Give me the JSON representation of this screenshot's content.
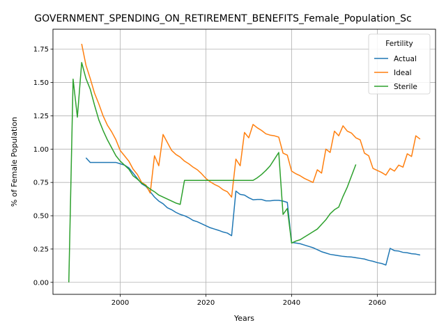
{
  "chart_data": {
    "type": "line",
    "title": "GOVERNMENT_SPENDING_ON_RETIREMENT_BENEFITS_Female_Population_Sc",
    "xlabel": "Years",
    "ylabel": "% of Female Population",
    "xlim": [
      1984.3,
      2073.6
    ],
    "ylim": [
      -0.09,
      1.9
    ],
    "xticks": [
      2000,
      2020,
      2040,
      2060
    ],
    "yticks": [
      0.0,
      0.25,
      0.5,
      0.75,
      1.0,
      1.25,
      1.5,
      1.75
    ],
    "grid": true,
    "legend": {
      "title": "Fertility",
      "position": "top-right"
    },
    "series": [
      {
        "name": "Actual",
        "color": "#1f77b4",
        "points": [
          [
            1992,
            0.935
          ],
          [
            1993,
            0.9
          ],
          [
            1994,
            0.9
          ],
          [
            1995,
            0.9
          ],
          [
            1996,
            0.9
          ],
          [
            1997,
            0.9
          ],
          [
            1998,
            0.9
          ],
          [
            1999,
            0.9
          ],
          [
            2000,
            0.89
          ],
          [
            2001,
            0.88
          ],
          [
            2002,
            0.86
          ],
          [
            2003,
            0.82
          ],
          [
            2004,
            0.78
          ],
          [
            2005,
            0.74
          ],
          [
            2006,
            0.72
          ],
          [
            2007,
            0.68
          ],
          [
            2008,
            0.64
          ],
          [
            2009,
            0.61
          ],
          [
            2010,
            0.59
          ],
          [
            2011,
            0.56
          ],
          [
            2012,
            0.545
          ],
          [
            2013,
            0.525
          ],
          [
            2014,
            0.51
          ],
          [
            2015,
            0.5
          ],
          [
            2016,
            0.485
          ],
          [
            2017,
            0.465
          ],
          [
            2018,
            0.455
          ],
          [
            2019,
            0.44
          ],
          [
            2020,
            0.425
          ],
          [
            2021,
            0.41
          ],
          [
            2022,
            0.4
          ],
          [
            2023,
            0.39
          ],
          [
            2024,
            0.378
          ],
          [
            2025,
            0.37
          ],
          [
            2026,
            0.35
          ],
          [
            2027,
            0.685
          ],
          [
            2028,
            0.66
          ],
          [
            2029,
            0.655
          ],
          [
            2030,
            0.635
          ],
          [
            2031,
            0.62
          ],
          [
            2032,
            0.622
          ],
          [
            2033,
            0.622
          ],
          [
            2034,
            0.612
          ],
          [
            2035,
            0.612
          ],
          [
            2036,
            0.616
          ],
          [
            2037,
            0.616
          ],
          [
            2038,
            0.61
          ],
          [
            2039,
            0.6
          ],
          [
            2040,
            0.3
          ],
          [
            2041,
            0.295
          ],
          [
            2042,
            0.29
          ],
          [
            2043,
            0.28
          ],
          [
            2044,
            0.27
          ],
          [
            2045,
            0.26
          ],
          [
            2046,
            0.245
          ],
          [
            2047,
            0.23
          ],
          [
            2048,
            0.22
          ],
          [
            2049,
            0.21
          ],
          [
            2050,
            0.205
          ],
          [
            2051,
            0.2
          ],
          [
            2052,
            0.195
          ],
          [
            2053,
            0.192
          ],
          [
            2054,
            0.19
          ],
          [
            2055,
            0.185
          ],
          [
            2056,
            0.18
          ],
          [
            2057,
            0.175
          ],
          [
            2058,
            0.165
          ],
          [
            2059,
            0.158
          ],
          [
            2060,
            0.148
          ],
          [
            2061,
            0.142
          ],
          [
            2062,
            0.13
          ],
          [
            2063,
            0.255
          ],
          [
            2064,
            0.238
          ],
          [
            2065,
            0.235
          ],
          [
            2066,
            0.225
          ],
          [
            2067,
            0.222
          ],
          [
            2068,
            0.215
          ],
          [
            2069,
            0.212
          ],
          [
            2070,
            0.205
          ]
        ]
      },
      {
        "name": "Ideal",
        "color": "#ff7f0e",
        "points": [
          [
            1991,
            1.79
          ],
          [
            1992,
            1.63
          ],
          [
            1993,
            1.53
          ],
          [
            1994,
            1.42
          ],
          [
            1995,
            1.34
          ],
          [
            1996,
            1.25
          ],
          [
            1997,
            1.18
          ],
          [
            1998,
            1.13
          ],
          [
            1999,
            1.07
          ],
          [
            2000,
            0.99
          ],
          [
            2001,
            0.95
          ],
          [
            2002,
            0.91
          ],
          [
            2003,
            0.85
          ],
          [
            2004,
            0.81
          ],
          [
            2005,
            0.75
          ],
          [
            2006,
            0.73
          ],
          [
            2007,
            0.67
          ],
          [
            2008,
            0.95
          ],
          [
            2009,
            0.875
          ],
          [
            2010,
            1.11
          ],
          [
            2011,
            1.05
          ],
          [
            2012,
            0.99
          ],
          [
            2013,
            0.96
          ],
          [
            2014,
            0.94
          ],
          [
            2015,
            0.91
          ],
          [
            2016,
            0.89
          ],
          [
            2017,
            0.865
          ],
          [
            2018,
            0.845
          ],
          [
            2019,
            0.815
          ],
          [
            2020,
            0.78
          ],
          [
            2021,
            0.755
          ],
          [
            2022,
            0.735
          ],
          [
            2023,
            0.72
          ],
          [
            2024,
            0.695
          ],
          [
            2025,
            0.68
          ],
          [
            2026,
            0.64
          ],
          [
            2027,
            0.925
          ],
          [
            2028,
            0.875
          ],
          [
            2029,
            1.125
          ],
          [
            2030,
            1.085
          ],
          [
            2031,
            1.185
          ],
          [
            2032,
            1.16
          ],
          [
            2033,
            1.14
          ],
          [
            2034,
            1.115
          ],
          [
            2035,
            1.105
          ],
          [
            2036,
            1.1
          ],
          [
            2037,
            1.09
          ],
          [
            2038,
            0.97
          ],
          [
            2039,
            0.955
          ],
          [
            2040,
            0.835
          ],
          [
            2041,
            0.815
          ],
          [
            2042,
            0.8
          ],
          [
            2043,
            0.78
          ],
          [
            2044,
            0.765
          ],
          [
            2045,
            0.75
          ],
          [
            2046,
            0.845
          ],
          [
            2047,
            0.82
          ],
          [
            2048,
            1.0
          ],
          [
            2049,
            0.975
          ],
          [
            2050,
            1.135
          ],
          [
            2051,
            1.1
          ],
          [
            2052,
            1.175
          ],
          [
            2053,
            1.135
          ],
          [
            2054,
            1.12
          ],
          [
            2055,
            1.085
          ],
          [
            2056,
            1.07
          ],
          [
            2057,
            0.97
          ],
          [
            2058,
            0.95
          ],
          [
            2059,
            0.855
          ],
          [
            2060,
            0.84
          ],
          [
            2061,
            0.825
          ],
          [
            2062,
            0.805
          ],
          [
            2063,
            0.855
          ],
          [
            2064,
            0.835
          ],
          [
            2065,
            0.88
          ],
          [
            2066,
            0.865
          ],
          [
            2067,
            0.965
          ],
          [
            2068,
            0.945
          ],
          [
            2069,
            1.1
          ],
          [
            2070,
            1.075
          ]
        ]
      },
      {
        "name": "Sterile",
        "color": "#2ca02c",
        "points": [
          [
            1988,
            0.0
          ],
          [
            1989,
            1.525
          ],
          [
            1990,
            1.24
          ],
          [
            1991,
            1.65
          ],
          [
            1992,
            1.53
          ],
          [
            1993,
            1.45
          ],
          [
            1994,
            1.33
          ],
          [
            1995,
            1.22
          ],
          [
            1996,
            1.14
          ],
          [
            1997,
            1.07
          ],
          [
            1998,
            1.01
          ],
          [
            1999,
            0.95
          ],
          [
            2000,
            0.91
          ],
          [
            2001,
            0.88
          ],
          [
            2002,
            0.85
          ],
          [
            2003,
            0.8
          ],
          [
            2004,
            0.775
          ],
          [
            2005,
            0.745
          ],
          [
            2006,
            0.725
          ],
          [
            2007,
            0.7
          ],
          [
            2008,
            0.68
          ],
          [
            2009,
            0.655
          ],
          [
            2010,
            0.64
          ],
          [
            2011,
            0.625
          ],
          [
            2012,
            0.61
          ],
          [
            2013,
            0.595
          ],
          [
            2014,
            0.585
          ],
          [
            2015,
            0.765
          ],
          [
            2016,
            0.765
          ],
          [
            2017,
            0.765
          ],
          [
            2018,
            0.765
          ],
          [
            2019,
            0.765
          ],
          [
            2020,
            0.765
          ],
          [
            2021,
            0.765
          ],
          [
            2022,
            0.765
          ],
          [
            2023,
            0.765
          ],
          [
            2024,
            0.765
          ],
          [
            2025,
            0.765
          ],
          [
            2026,
            0.765
          ],
          [
            2027,
            0.765
          ],
          [
            2028,
            0.765
          ],
          [
            2029,
            0.765
          ],
          [
            2030,
            0.765
          ],
          [
            2031,
            0.765
          ],
          [
            2032,
            0.785
          ],
          [
            2033,
            0.81
          ],
          [
            2034,
            0.84
          ],
          [
            2035,
            0.875
          ],
          [
            2036,
            0.925
          ],
          [
            2037,
            0.975
          ],
          [
            2038,
            0.51
          ],
          [
            2039,
            0.555
          ],
          [
            2040,
            0.295
          ],
          [
            2041,
            0.31
          ],
          [
            2042,
            0.32
          ],
          [
            2043,
            0.34
          ],
          [
            2044,
            0.36
          ],
          [
            2045,
            0.38
          ],
          [
            2046,
            0.4
          ],
          [
            2047,
            0.435
          ],
          [
            2048,
            0.47
          ],
          [
            2049,
            0.515
          ],
          [
            2050,
            0.545
          ],
          [
            2051,
            0.565
          ],
          [
            2052,
            0.645
          ],
          [
            2053,
            0.715
          ],
          [
            2054,
            0.8
          ],
          [
            2055,
            0.885
          ]
        ]
      }
    ]
  }
}
